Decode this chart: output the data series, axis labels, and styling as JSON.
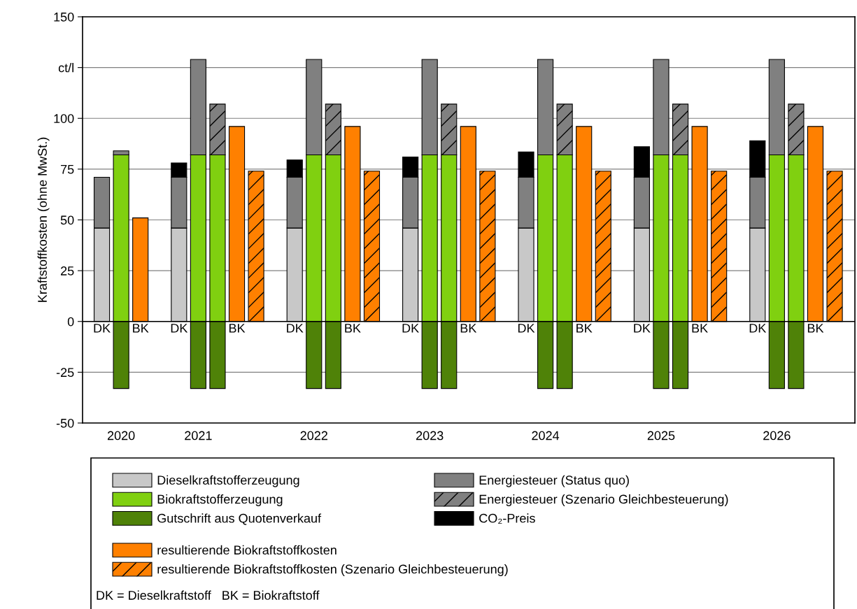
{
  "chart_data": {
    "type": "bar",
    "stacked": true,
    "ylabel": "Kraftstoffkosten (ohne MwSt.)",
    "categories": [
      "DK",
      null,
      "BK",
      null,
      "DK",
      null,
      null,
      "BK",
      null,
      null,
      "DK",
      null,
      null,
      "BK",
      null,
      null,
      "DK",
      null,
      null,
      "BK",
      null,
      null,
      "DK",
      null,
      null,
      "BK",
      null,
      null,
      "DK",
      null,
      null,
      "BK",
      null,
      null,
      "DK",
      null,
      null,
      "BK",
      null
    ],
    "series": [
      {
        "name": "Dieselkraftstofferzeugung",
        "color": "#c8c8c8",
        "values": [
          46,
          null,
          null,
          null,
          46,
          null,
          null,
          null,
          null,
          null,
          46,
          null,
          null,
          null,
          null,
          null,
          46,
          null,
          null,
          null,
          null,
          null,
          46,
          null,
          null,
          null,
          null,
          null,
          46,
          null,
          null,
          null,
          null,
          null,
          46,
          null,
          null,
          null,
          null
        ]
      },
      {
        "name": "Biokraftstofferzeugung",
        "color": "#80d010",
        "values": [
          null,
          82,
          null,
          null,
          null,
          82,
          82,
          null,
          null,
          null,
          null,
          82,
          82,
          null,
          null,
          null,
          null,
          82,
          82,
          null,
          null,
          null,
          null,
          82,
          82,
          null,
          null,
          null,
          null,
          82,
          82,
          null,
          null,
          null,
          null,
          82,
          82,
          null,
          null
        ]
      },
      {
        "name": "Gutschrift aus Quotenverkauf",
        "color": "#4f8208",
        "values": [
          null,
          -33,
          null,
          null,
          null,
          -33,
          -33,
          null,
          null,
          null,
          null,
          -33,
          -33,
          null,
          null,
          null,
          null,
          -33,
          -33,
          null,
          null,
          null,
          null,
          -33,
          -33,
          null,
          null,
          null,
          null,
          -33,
          -33,
          null,
          null,
          null,
          null,
          -33,
          -33,
          null,
          null
        ]
      },
      {
        "name": "Energiesteuer (Status quo)",
        "color": "#808080",
        "values": [
          25,
          2,
          null,
          null,
          25,
          47,
          null,
          null,
          null,
          null,
          25,
          47,
          null,
          null,
          null,
          null,
          25,
          47,
          null,
          null,
          null,
          null,
          25,
          47,
          null,
          null,
          null,
          null,
          25,
          47,
          null,
          null,
          null,
          null,
          25,
          47,
          null,
          null,
          null
        ]
      },
      {
        "name": "Energiesteuer (Szenario Gleichbesteuerung)",
        "color": "#808080",
        "values": [
          null,
          null,
          null,
          null,
          null,
          null,
          25,
          null,
          null,
          null,
          null,
          null,
          25,
          null,
          null,
          null,
          null,
          null,
          25,
          null,
          null,
          null,
          null,
          null,
          25,
          null,
          null,
          null,
          null,
          null,
          25,
          null,
          null,
          null,
          null,
          null,
          25,
          null,
          null
        ]
      },
      {
        "name": "CO₂-Preis",
        "color": "#000000",
        "values": [
          null,
          null,
          null,
          null,
          7,
          null,
          null,
          null,
          null,
          null,
          8.5,
          null,
          null,
          null,
          null,
          null,
          10,
          null,
          null,
          null,
          null,
          null,
          12.5,
          null,
          null,
          null,
          null,
          null,
          15,
          null,
          null,
          null,
          null,
          null,
          18,
          null,
          null,
          null,
          null
        ]
      },
      {
        "name": "resultierende Biokraftstoffkosten",
        "color": "#ff8000",
        "values": [
          null,
          null,
          51,
          null,
          null,
          null,
          null,
          96,
          null,
          null,
          null,
          null,
          null,
          96,
          null,
          null,
          null,
          null,
          null,
          96,
          null,
          null,
          null,
          null,
          null,
          96,
          null,
          null,
          null,
          null,
          null,
          96,
          null,
          null,
          null,
          null,
          null,
          96,
          null
        ]
      },
      {
        "name": "resultierende Biokraftstoffkosten (Szenario Gleichbesteuerung)",
        "color": "#ff8000",
        "values": [
          null,
          null,
          null,
          null,
          null,
          null,
          null,
          null,
          74,
          null,
          null,
          null,
          null,
          null,
          74,
          null,
          null,
          null,
          null,
          null,
          74,
          null,
          null,
          null,
          null,
          null,
          74,
          null,
          null,
          null,
          null,
          null,
          74,
          null,
          null,
          null,
          null,
          null,
          74
        ]
      }
    ],
    "ylim": [
      -50,
      150
    ],
    "yticks": [
      -50,
      -25,
      0,
      25,
      50,
      75,
      100,
      {
        "value": 125,
        "label": "ct/l"
      },
      150
    ],
    "grid": "y",
    "legend": "bottom",
    "annotations": [
      "2020",
      "2021",
      "2022",
      "2023",
      "2024",
      "2025",
      "2026",
      "DK = Dieselkraftstoff   BK = Biokraftstoff"
    ]
  }
}
